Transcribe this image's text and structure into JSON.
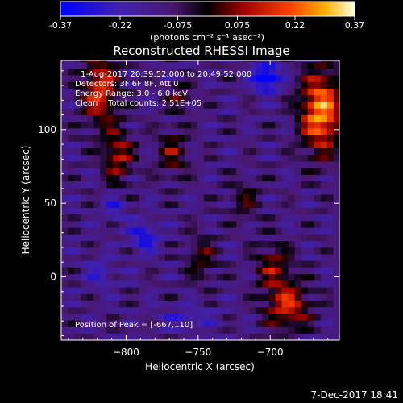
{
  "colorbar": {
    "ticks": [
      "-0.37",
      "-0.22",
      "-0.075",
      "0.075",
      "0.22",
      "0.37"
    ],
    "tick_values": [
      -0.37,
      -0.22,
      -0.075,
      0.075,
      0.22,
      0.37
    ],
    "range": [
      -0.37,
      0.37
    ],
    "unit_label": "(photons cm⁻² s⁻¹ asec⁻²)"
  },
  "chart_data": {
    "type": "heatmap",
    "title": "Reconstructed RHESSI Image",
    "xlabel": "Heliocentric X (arcsec)",
    "ylabel": "Heliocentric Y (arcsec)",
    "xticks": [
      "−800",
      "−750",
      "−700"
    ],
    "xtick_values": [
      -800,
      -750,
      -700
    ],
    "yticks": [
      "0",
      "50",
      "100"
    ],
    "ytick_values": [
      0,
      50,
      100
    ],
    "xlim": [
      -845,
      -652
    ],
    "ylim": [
      -43,
      147
    ],
    "value_range": [
      -0.37,
      0.37
    ],
    "annotations": {
      "time": "1-Aug-2017 20:39:52.000 to 20:49:52.000",
      "detectors": "Detectors: 3F 6F 8F, Att 0",
      "energy": "Energy Range: 3.0 - 6.0 keV",
      "clean": "Clean    Total counts: 2.51E+05",
      "peak": "Position of Peak = [-667,110]"
    },
    "peak": [
      -667,
      110
    ]
  },
  "footer": {
    "date": "7-Dec-2017 18:41"
  }
}
